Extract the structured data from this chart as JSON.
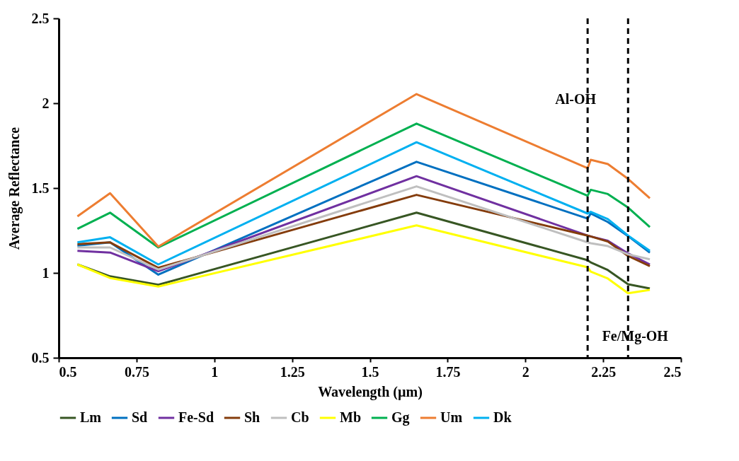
{
  "chart_data": {
    "type": "line",
    "xlabel": "Wavelength (µm)",
    "ylabel": "Average Reflectance",
    "x": [
      0.56,
      0.665,
      0.82,
      1.65,
      2.2,
      2.21,
      2.265,
      2.33,
      2.4
    ],
    "xlim": [
      0.5,
      2.5
    ],
    "xticks": [
      0.5,
      0.75,
      1,
      1.25,
      1.5,
      1.75,
      2,
      2.25,
      2.5
    ],
    "ylim": [
      0.5,
      2.5
    ],
    "yticks": [
      0.5,
      1,
      1.5,
      2,
      2.5
    ],
    "grid": false,
    "legend": "bottom",
    "marker": "none",
    "line_style": "solid",
    "ref_lines": [
      {
        "axis": "x",
        "value": 2.2,
        "label": "Al-OH",
        "color": "#000000",
        "line_style": "dashed"
      },
      {
        "axis": "x",
        "value": 2.33,
        "label": "Fe/Mg-OH",
        "color": "#000000",
        "line_style": "dashed"
      }
    ],
    "series": [
      {
        "name": "Lm",
        "color": "#375623",
        "values": [
          1.05,
          0.98,
          0.93,
          1.355,
          1.075,
          1.062,
          1.017,
          0.933,
          0.908
        ]
      },
      {
        "name": "Sd",
        "color": "#0070c0",
        "values": [
          1.16,
          1.18,
          0.99,
          1.655,
          1.32,
          1.35,
          1.3,
          1.217,
          1.12
        ]
      },
      {
        "name": "Fe-Sd",
        "color": "#7030a0",
        "values": [
          1.13,
          1.12,
          1.01,
          1.57,
          1.22,
          1.215,
          1.19,
          1.115,
          1.05
        ]
      },
      {
        "name": "Sh",
        "color": "#843c0c",
        "values": [
          1.17,
          1.18,
          1.03,
          1.46,
          1.22,
          1.215,
          1.185,
          1.1,
          1.04
        ]
      },
      {
        "name": "Cb",
        "color": "#bfbfbf",
        "values": [
          1.15,
          1.15,
          1.02,
          1.51,
          1.18,
          1.175,
          1.158,
          1.11,
          1.08
        ]
      },
      {
        "name": "Mb",
        "color": "#ffff00",
        "values": [
          1.05,
          0.97,
          0.92,
          1.28,
          1.033,
          1.008,
          0.967,
          0.88,
          0.9
        ]
      },
      {
        "name": "Gg",
        "color": "#00b050",
        "values": [
          1.26,
          1.355,
          1.15,
          1.88,
          1.455,
          1.49,
          1.465,
          1.385,
          1.27
        ]
      },
      {
        "name": "Um",
        "color": "#ed7d31",
        "values": [
          1.333,
          1.47,
          1.155,
          2.054,
          1.617,
          1.667,
          1.642,
          1.554,
          1.44
        ]
      },
      {
        "name": "Dk",
        "color": "#00b0f0",
        "values": [
          1.18,
          1.21,
          1.05,
          1.77,
          1.35,
          1.36,
          1.317,
          1.22,
          1.13
        ]
      }
    ]
  }
}
